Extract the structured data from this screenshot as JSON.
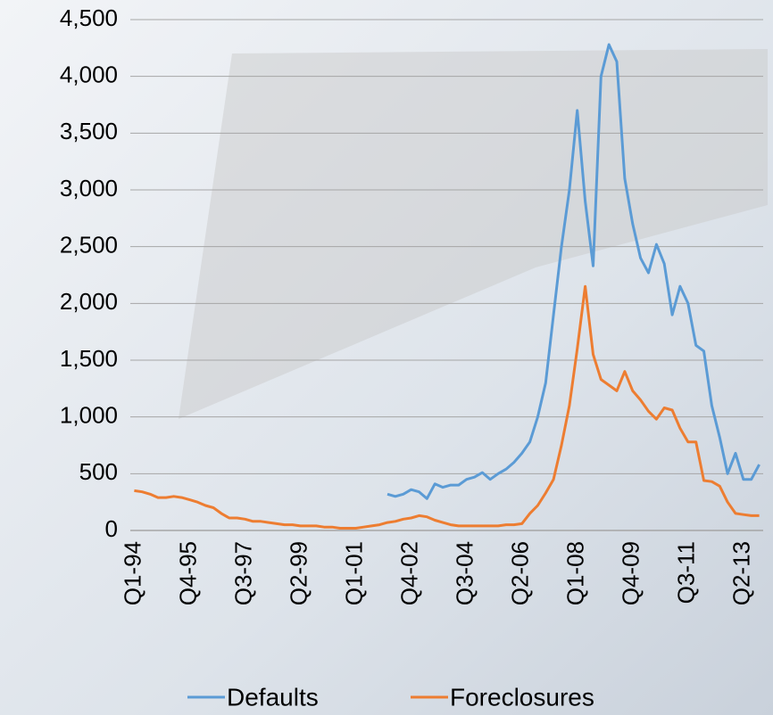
{
  "chart_data": {
    "type": "line",
    "categories": [
      "Q1-94",
      null,
      null,
      null,
      null,
      null,
      null,
      "Q4-95",
      null,
      null,
      null,
      null,
      null,
      null,
      "Q3-97",
      null,
      null,
      null,
      null,
      null,
      null,
      "Q2-99",
      null,
      null,
      null,
      null,
      null,
      null,
      "Q1-01",
      null,
      null,
      null,
      null,
      null,
      null,
      "Q4-02",
      null,
      null,
      null,
      null,
      null,
      null,
      "Q3-04",
      null,
      null,
      null,
      null,
      null,
      null,
      "Q2-06",
      null,
      null,
      null,
      null,
      null,
      null,
      "Q1-08",
      null,
      null,
      null,
      null,
      null,
      null,
      "Q4-09",
      null,
      null,
      null,
      null,
      null,
      null,
      "Q3-11",
      null,
      null,
      null,
      null,
      null,
      null,
      "Q2-13",
      null,
      null
    ],
    "series": [
      {
        "name": "Defaults",
        "color": "#5b9bd5",
        "values": [
          null,
          null,
          null,
          null,
          null,
          null,
          null,
          null,
          null,
          null,
          null,
          null,
          null,
          null,
          null,
          null,
          null,
          null,
          null,
          null,
          null,
          null,
          null,
          null,
          null,
          null,
          null,
          null,
          null,
          null,
          null,
          null,
          320,
          300,
          320,
          360,
          340,
          280,
          410,
          380,
          400,
          400,
          450,
          470,
          510,
          450,
          500,
          540,
          600,
          680,
          780,
          1000,
          1300,
          1900,
          2500,
          3000,
          3700,
          2900,
          2330,
          4000,
          4280,
          4130,
          3100,
          2700,
          2400,
          2270,
          2520,
          2350,
          1900,
          2150,
          2000,
          1630,
          1580,
          1100,
          820,
          500,
          680,
          450,
          450,
          580
        ]
      },
      {
        "name": "Foreclosures",
        "color": "#ed7d31",
        "values": [
          350,
          340,
          320,
          290,
          290,
          300,
          290,
          270,
          250,
          220,
          200,
          150,
          110,
          110,
          100,
          80,
          80,
          70,
          60,
          50,
          50,
          40,
          40,
          40,
          30,
          30,
          20,
          20,
          20,
          30,
          40,
          50,
          70,
          80,
          100,
          110,
          130,
          120,
          90,
          70,
          50,
          40,
          40,
          40,
          40,
          40,
          40,
          50,
          50,
          60,
          150,
          220,
          330,
          450,
          750,
          1100,
          1600,
          2150,
          1550,
          1330,
          1280,
          1230,
          1400,
          1230,
          1150,
          1050,
          980,
          1080,
          1060,
          900,
          780,
          780,
          440,
          430,
          390,
          250,
          150,
          140,
          130,
          130
        ]
      }
    ],
    "ylim": [
      0,
      4500
    ],
    "yticks": [
      0,
      500,
      {
        "value": 1000,
        "label": "1,000"
      },
      {
        "value": 1500,
        "label": "1,500"
      },
      {
        "value": 2000,
        "label": "2,000"
      },
      {
        "value": 2500,
        "label": "2,500"
      },
      {
        "value": 3000,
        "label": "3,000"
      },
      {
        "value": 3500,
        "label": "3,500"
      },
      {
        "value": 4000,
        "label": "4,000"
      },
      {
        "value": 4500,
        "label": "4,500"
      }
    ],
    "grid": true,
    "legend": "bottom"
  }
}
